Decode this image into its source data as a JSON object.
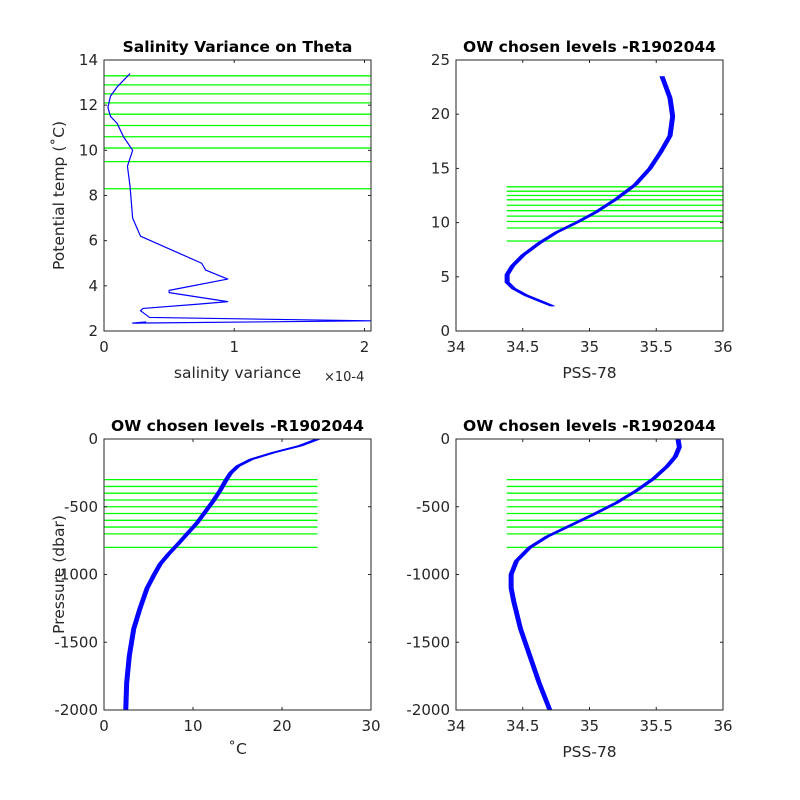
{
  "figure": {
    "background": "#ffffff"
  },
  "colors": {
    "profile": "#0000ff",
    "level": "#00ff00",
    "axis": "#262626"
  },
  "chart_data": [
    {
      "type": "line",
      "title": "Salinity Variance on Theta",
      "xlabel": "salinity variance",
      "ylabel": "Potential temp (˚C)",
      "x_exponent_label": "×10-4",
      "xlim": [
        0,
        2.05
      ],
      "ylim": [
        2,
        14
      ],
      "xticks": [
        0,
        1,
        2
      ],
      "xticklabels": [
        "0",
        "1",
        "2"
      ],
      "yticks": [
        2,
        4,
        6,
        8,
        10,
        12,
        14
      ],
      "yticklabels": [
        "2",
        "4",
        "6",
        "8",
        "10",
        "12",
        "14"
      ],
      "grid": false,
      "legend": "none",
      "hlines": [
        8.3,
        9.5,
        10.1,
        10.6,
        11.1,
        11.6,
        12.1,
        12.5,
        12.9,
        13.3
      ],
      "hline_span": [
        0,
        2.05
      ],
      "series": [
        {
          "x": [
            0.3,
            0.32,
            0.22,
            2.05,
            0.35,
            0.28,
            0.3,
            0.75,
            0.95,
            0.5,
            0.5,
            0.95,
            0.78,
            0.75,
            0.28,
            0.22,
            0.2,
            0.18,
            0.22,
            0.15,
            0.1,
            0.05,
            0.03,
            0.05,
            0.1,
            0.15,
            0.2
          ],
          "y": [
            2.35,
            2.4,
            2.35,
            2.45,
            2.6,
            2.9,
            3.0,
            3.2,
            3.3,
            3.7,
            3.8,
            4.3,
            4.7,
            5.0,
            6.2,
            7.0,
            8.4,
            9.3,
            10.0,
            10.6,
            11.2,
            11.5,
            11.9,
            12.4,
            12.8,
            13.1,
            13.4
          ]
        }
      ]
    },
    {
      "type": "line",
      "title": "OW chosen levels -R1902044",
      "xlabel": "PSS-78",
      "ylabel": "",
      "xlim": [
        34,
        36
      ],
      "ylim": [
        0,
        25
      ],
      "xticks": [
        34,
        34.5,
        35,
        35.5,
        36
      ],
      "xticklabels": [
        "34",
        "34.5",
        "35",
        "35.5",
        "36"
      ],
      "yticks": [
        0,
        5,
        10,
        15,
        20,
        25
      ],
      "yticklabels": [
        "0",
        "5",
        "10",
        "15",
        "20",
        "25"
      ],
      "grid": false,
      "legend": "none",
      "hlines": [
        8.3,
        9.5,
        10.1,
        10.6,
        11.1,
        11.6,
        12.1,
        12.5,
        12.9,
        13.3
      ],
      "hline_span": [
        34.38,
        36
      ],
      "series": [
        {
          "x": [
            34.72,
            34.62,
            34.52,
            34.43,
            34.38,
            34.38,
            34.42,
            34.5,
            34.62,
            34.75,
            34.9,
            35.05,
            35.2,
            35.34,
            35.45,
            35.53,
            35.6,
            35.62,
            35.6,
            35.54
          ],
          "y": [
            2.3,
            2.8,
            3.3,
            3.9,
            4.5,
            5.2,
            6.0,
            7.0,
            8.1,
            9.1,
            10.0,
            11.0,
            12.2,
            13.5,
            15.0,
            16.5,
            18.0,
            19.8,
            21.5,
            23.5
          ]
        }
      ]
    },
    {
      "type": "line",
      "title": "OW chosen levels -R1902044",
      "xlabel": "˚C",
      "ylabel": "Pressure (dbar)",
      "xlim": [
        0,
        30
      ],
      "ylim": [
        -2000,
        0
      ],
      "xticks": [
        0,
        10,
        20,
        30
      ],
      "xticklabels": [
        "0",
        "10",
        "20",
        "30"
      ],
      "yticks": [
        -2000,
        -1500,
        -1000,
        -500,
        0
      ],
      "yticklabels": [
        "-2000",
        "-1500",
        "-1000",
        "-500",
        "0"
      ],
      "grid": false,
      "legend": "none",
      "hlines": [
        -300,
        -350,
        -400,
        -450,
        -500,
        -550,
        -600,
        -650,
        -700,
        -800
      ],
      "hline_span": [
        0,
        24
      ],
      "series": [
        {
          "x": [
            2.4,
            2.5,
            2.8,
            3.3,
            4.0,
            4.8,
            5.6,
            6.3,
            7.2,
            8.2,
            9.3,
            10.4,
            11.3,
            12.2,
            13.0,
            13.7,
            14.2,
            15.0,
            16.5,
            19.0,
            22.0,
            24.0
          ],
          "y": [
            -2000,
            -1800,
            -1600,
            -1400,
            -1250,
            -1100,
            -1000,
            -920,
            -850,
            -780,
            -700,
            -620,
            -540,
            -460,
            -380,
            -300,
            -250,
            -200,
            -150,
            -100,
            -50,
            0
          ]
        }
      ]
    },
    {
      "type": "line",
      "title": "OW chosen levels -R1902044",
      "xlabel": "PSS-78",
      "ylabel": "",
      "xlim": [
        34,
        36
      ],
      "ylim": [
        -2000,
        0
      ],
      "xticks": [
        34,
        34.5,
        35,
        35.5,
        36
      ],
      "xticklabels": [
        "34",
        "34.5",
        "35",
        "35.5",
        "36"
      ],
      "yticks": [
        -2000,
        -1500,
        -1000,
        -500,
        0
      ],
      "yticklabels": [
        "-2000",
        "-1500",
        "-1000",
        "-500",
        "0"
      ],
      "grid": false,
      "legend": "none",
      "hlines": [
        -300,
        -350,
        -400,
        -450,
        -500,
        -550,
        -600,
        -650,
        -700,
        -800
      ],
      "hline_span": [
        34.38,
        36
      ],
      "series": [
        {
          "x": [
            34.7,
            34.62,
            34.55,
            34.48,
            34.43,
            34.41,
            34.41,
            34.45,
            34.55,
            34.68,
            34.85,
            35.02,
            35.2,
            35.35,
            35.48,
            35.58,
            35.64,
            35.67,
            35.66
          ],
          "y": [
            -2000,
            -1800,
            -1600,
            -1400,
            -1200,
            -1100,
            -1000,
            -900,
            -800,
            -720,
            -640,
            -560,
            -470,
            -380,
            -290,
            -200,
            -130,
            -60,
            0
          ]
        }
      ]
    }
  ]
}
